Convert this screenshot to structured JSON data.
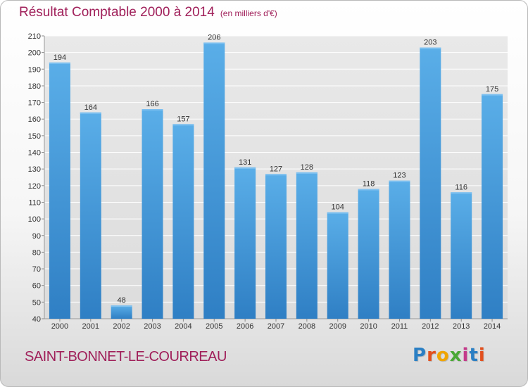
{
  "header": {
    "title": "Résultat Comptable 2000 à 2014",
    "subtitle": "(en milliers d'€)"
  },
  "footer": {
    "commune": "SAINT-BONNET-LE-COURREAU",
    "logo_letters": [
      "P",
      "r",
      "o",
      "x",
      "i",
      "t",
      "i"
    ]
  },
  "colors": {
    "title": "#a0205a",
    "bar": "#3c8fd6",
    "logo": [
      "#2a7fc4",
      "#e2501e",
      "#f0a500",
      "#4aa836",
      "#c43a8a",
      "#2a7fc4",
      "#e2501e"
    ]
  },
  "chart_data": {
    "type": "bar",
    "title": "Résultat Comptable 2000 à 2014",
    "subtitle": "(en milliers d'€)",
    "categories": [
      "2000",
      "2001",
      "2002",
      "2003",
      "2004",
      "2005",
      "2006",
      "2007",
      "2008",
      "2009",
      "2010",
      "2011",
      "2012",
      "2013",
      "2014"
    ],
    "values": [
      194,
      164,
      48,
      166,
      157,
      206,
      131,
      127,
      128,
      104,
      118,
      123,
      203,
      116,
      175
    ],
    "ylim": [
      40,
      210
    ],
    "yticks": [
      40,
      50,
      60,
      70,
      80,
      90,
      100,
      110,
      120,
      130,
      140,
      150,
      160,
      170,
      180,
      190,
      200,
      210
    ],
    "grid": true,
    "legend": "none"
  }
}
